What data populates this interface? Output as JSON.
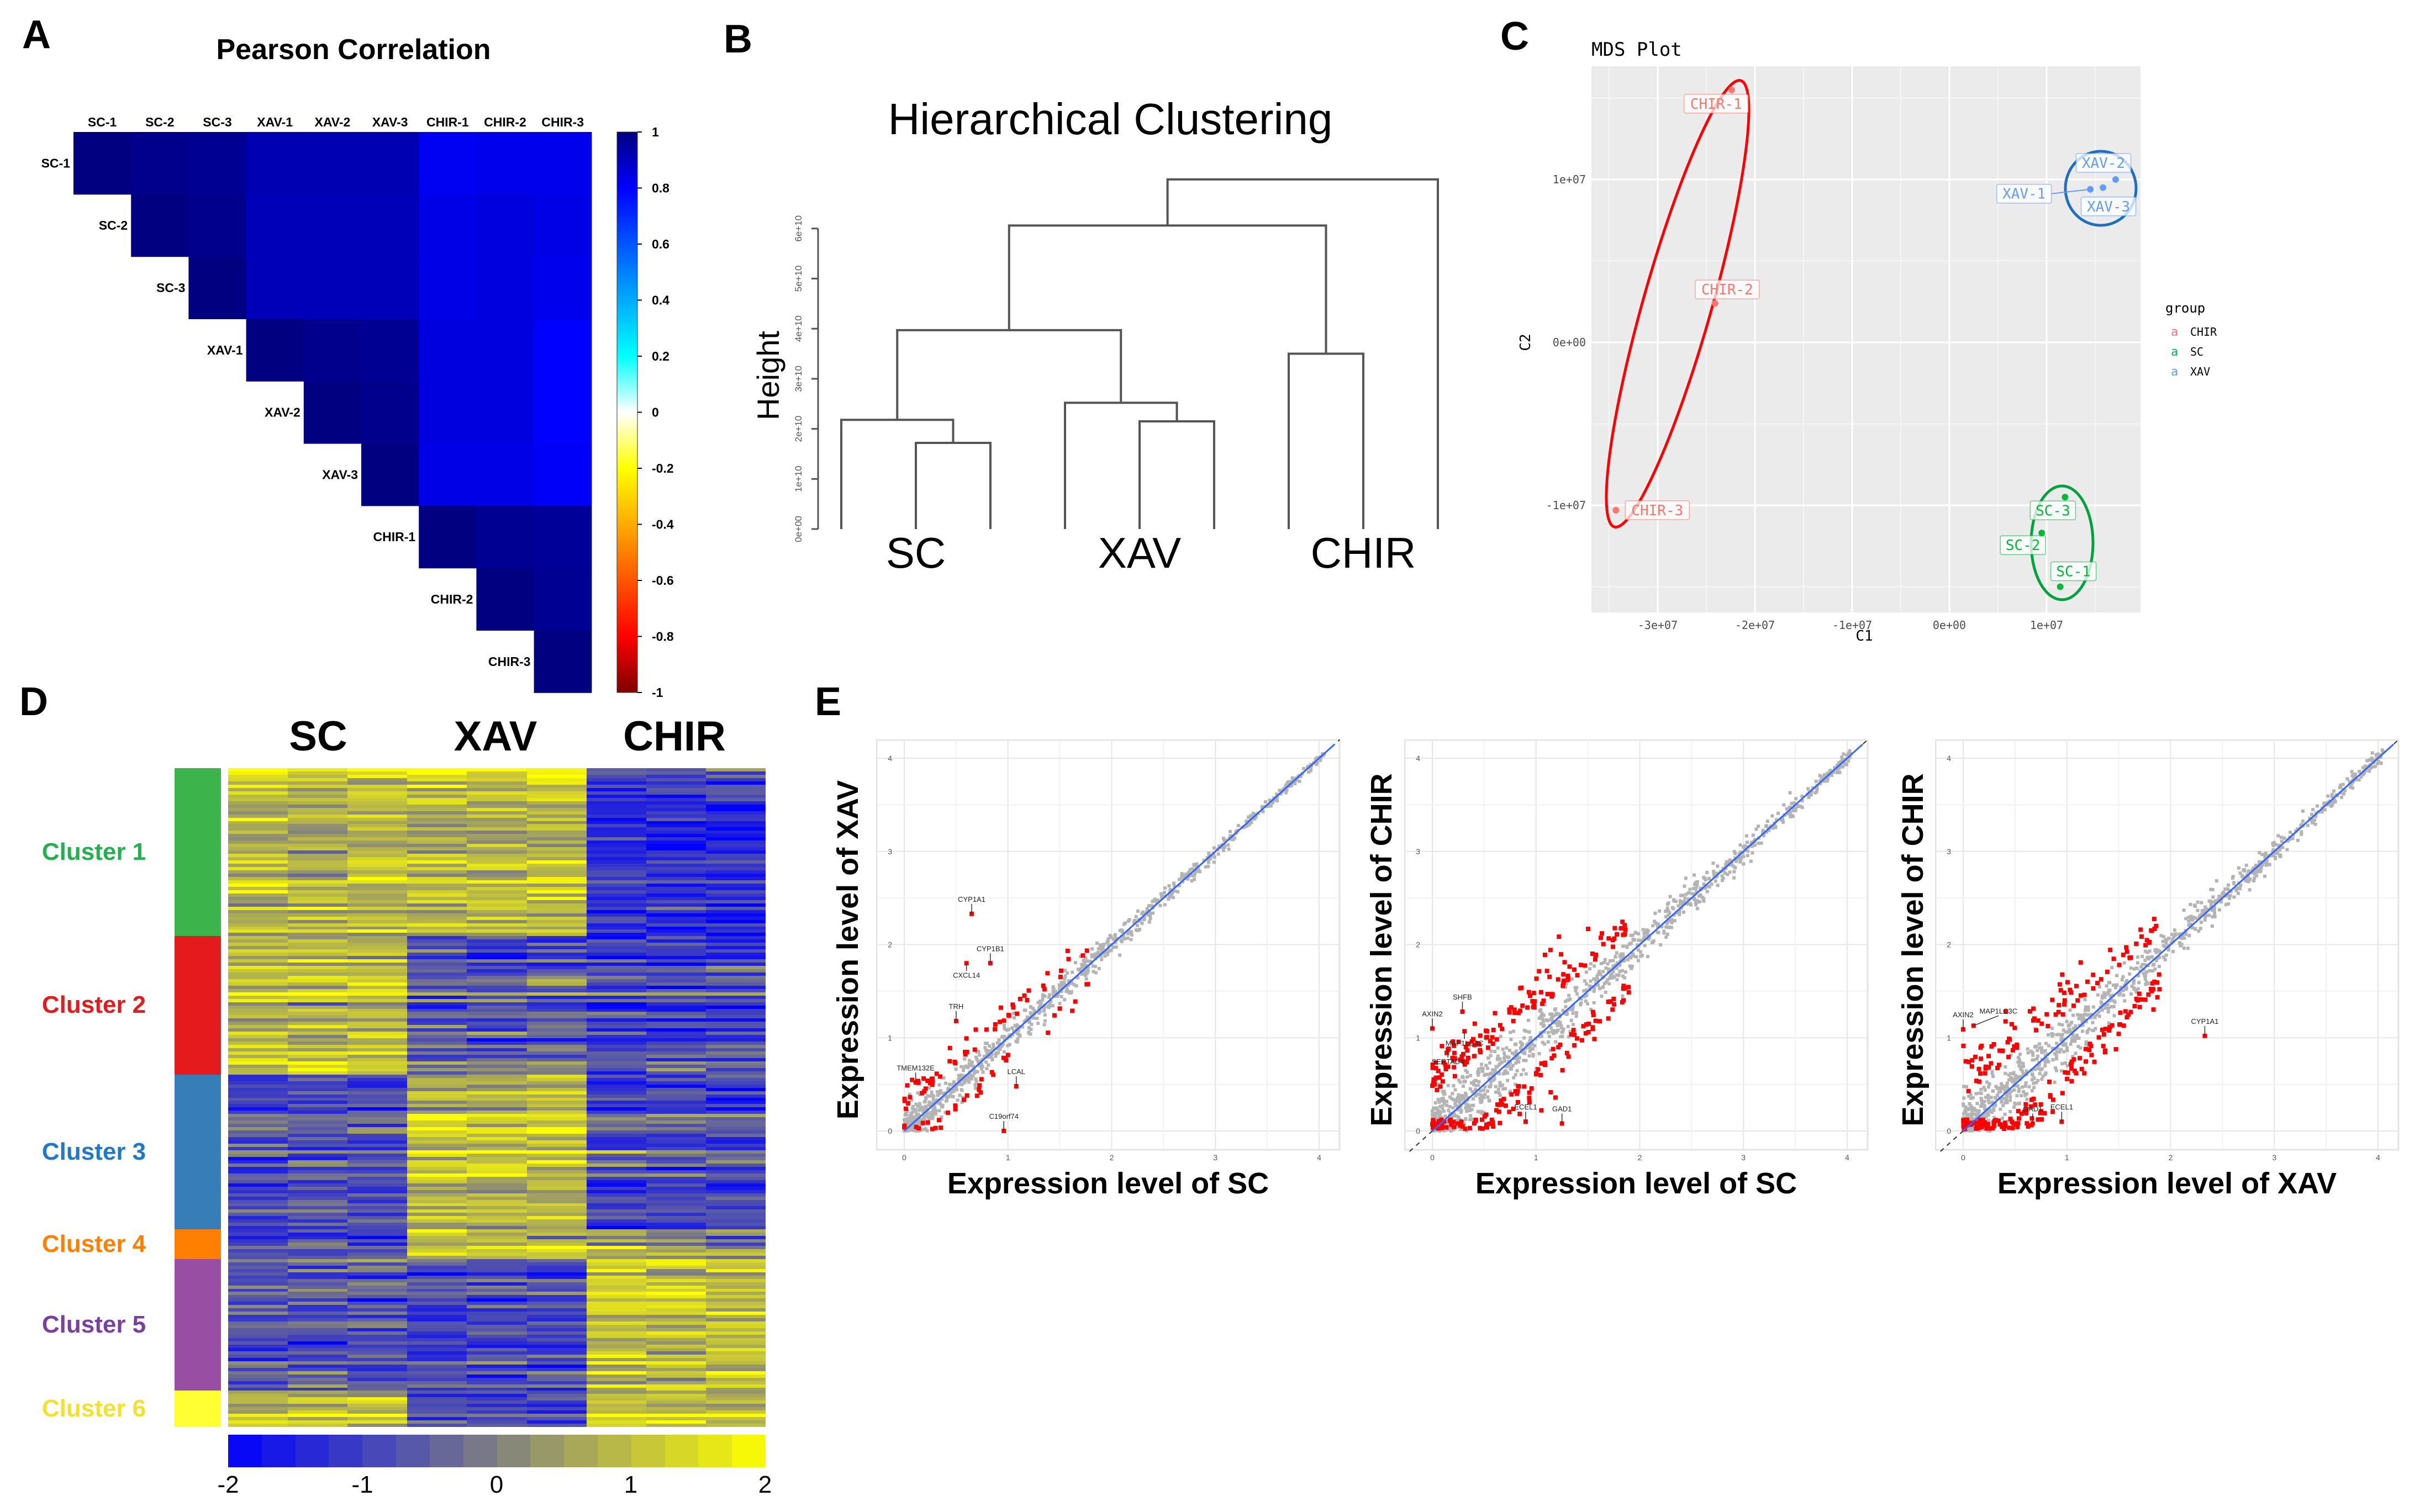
{
  "panel_letters": {
    "a": "A",
    "b": "B",
    "c": "C",
    "d": "D",
    "e": "E"
  },
  "chart_data": [
    {
      "id": "A",
      "type": "heatmap",
      "title": "Pearson Correlation",
      "samples": [
        "SC-1",
        "SC-2",
        "SC-3",
        "XAV-1",
        "XAV-2",
        "XAV-3",
        "CHIR-1",
        "CHIR-2",
        "CHIR-3"
      ],
      "matrix_upper": [
        [
          1,
          0.98,
          0.97,
          0.92,
          0.92,
          0.92,
          0.82,
          0.83,
          0.83
        ],
        [
          null,
          1,
          0.98,
          0.91,
          0.91,
          0.91,
          0.84,
          0.85,
          0.84
        ],
        [
          null,
          null,
          1,
          0.91,
          0.91,
          0.91,
          0.84,
          0.85,
          0.83
        ],
        [
          null,
          null,
          null,
          1,
          0.98,
          0.97,
          0.85,
          0.85,
          0.8
        ],
        [
          null,
          null,
          null,
          null,
          1,
          0.98,
          0.85,
          0.85,
          0.8
        ],
        [
          null,
          null,
          null,
          null,
          null,
          1,
          0.84,
          0.84,
          0.81
        ],
        [
          null,
          null,
          null,
          null,
          null,
          null,
          1,
          0.97,
          0.96
        ],
        [
          null,
          null,
          null,
          null,
          null,
          null,
          null,
          1,
          0.97
        ],
        [
          null,
          null,
          null,
          null,
          null,
          null,
          null,
          null,
          1
        ]
      ],
      "colorbar": {
        "range": [
          -1,
          1
        ],
        "ticks": [
          "1",
          "0.8",
          "0.6",
          "0.4",
          "0.2",
          "0",
          "-0.2",
          "-0.4",
          "-0.6",
          "-0.8",
          "-1"
        ],
        "stops": [
          [
            -1,
            "#7f0000"
          ],
          [
            -0.8,
            "#ff0000"
          ],
          [
            -0.5,
            "#ff8000"
          ],
          [
            -0.2,
            "#ffff00"
          ],
          [
            0,
            "#ffffff"
          ],
          [
            0.2,
            "#00ffff"
          ],
          [
            0.5,
            "#0080ff"
          ],
          [
            0.8,
            "#0000ff"
          ],
          [
            1,
            "#000080"
          ]
        ]
      }
    },
    {
      "id": "B",
      "type": "dendrogram",
      "title": "Hierarchical Clustering",
      "ylabel": "Height",
      "yticks": [
        "0e+00",
        "1e+10",
        "2e+10",
        "3e+10",
        "4e+10",
        "5e+10",
        "6e+10"
      ],
      "height_unit": 10000000000.0,
      "n_leaves": 9,
      "merges": [
        {
          "id": "m0",
          "a": 1,
          "b": 2,
          "h": 1.72
        },
        {
          "id": "m1",
          "a": 4,
          "b": 5,
          "h": 2.15
        },
        {
          "id": "m2",
          "a": 0,
          "b": "m0",
          "h": 2.18
        },
        {
          "id": "m3",
          "a": 3,
          "b": "m1",
          "h": 2.52
        },
        {
          "id": "m4",
          "a": 6,
          "b": 7,
          "h": 3.5
        },
        {
          "id": "m5",
          "a": "m2",
          "b": "m3",
          "h": 3.97
        },
        {
          "id": "m6",
          "a": "m5",
          "b": "m4",
          "h": 6.06
        },
        {
          "id": "m7",
          "a": "m6",
          "b": 8,
          "h": 6.98
        }
      ],
      "group_labels": [
        "SC",
        "XAV",
        "CHIR"
      ]
    },
    {
      "id": "C",
      "type": "scatter",
      "title": "MDS Plot",
      "xlabel": "C1",
      "ylabel": "C2",
      "xticks": [
        {
          "v": -30000000.0,
          "t": "-3e+07"
        },
        {
          "v": -20000000.0,
          "t": "-2e+07"
        },
        {
          "v": -10000000.0,
          "t": "-1e+07"
        },
        {
          "v": 0,
          "t": "0e+00"
        },
        {
          "v": 10000000.0,
          "t": "1e+07"
        }
      ],
      "yticks": [
        {
          "v": 10000000.0,
          "t": "1e+07"
        },
        {
          "v": 0,
          "t": "0e+00"
        },
        {
          "v": -10000000.0,
          "t": "-1e+07"
        }
      ],
      "legend": {
        "title": "group",
        "placement": "right",
        "items": [
          {
            "key": "a",
            "label": "CHIR",
            "color": "#f8766d"
          },
          {
            "key": "a",
            "label": "SC",
            "color": "#00ba38"
          },
          {
            "key": "a",
            "label": "XAV",
            "color": "#619cff"
          }
        ]
      },
      "ellipse_colors": {
        "CHIR": "#ff0000",
        "SC": "#00a33b",
        "XAV": "#1f6fbf"
      },
      "points": [
        {
          "label": "CHIR-1",
          "group": "CHIR",
          "x": -22400000.0,
          "y": 15500000.0
        },
        {
          "label": "CHIR-2",
          "group": "CHIR",
          "x": -24100000.0,
          "y": 2400000.0
        },
        {
          "label": "CHIR-3",
          "group": "CHIR",
          "x": -34300000.0,
          "y": -10300000.0
        },
        {
          "label": "XAV-1",
          "group": "XAV",
          "x": 14500000.0,
          "y": 9400000.0
        },
        {
          "label": "XAV-2",
          "group": "XAV",
          "x": 17100000.0,
          "y": 10000000.0
        },
        {
          "label": "XAV-3",
          "group": "XAV",
          "x": 15800000.0,
          "y": 9500000.0
        },
        {
          "label": "SC-1",
          "group": "SC",
          "x": 11400000.0,
          "y": -15000000.0
        },
        {
          "label": "SC-2",
          "group": "SC",
          "x": 9500000.0,
          "y": -11700000.0
        },
        {
          "label": "SC-3",
          "group": "SC",
          "x": 11900000.0,
          "y": -9500000.0
        }
      ]
    },
    {
      "id": "D",
      "type": "heatmap",
      "column_groups": [
        "SC",
        "XAV",
        "CHIR"
      ],
      "columns_per_group": 3,
      "colorbar": {
        "ticks": [
          "-2",
          "-1",
          "0",
          "1",
          "2"
        ],
        "range": [
          -2,
          2
        ],
        "stops": [
          [
            -2,
            "#0000ff"
          ],
          [
            0,
            "#808080"
          ],
          [
            2,
            "#ffff00"
          ]
        ]
      },
      "clusters": [
        {
          "label": "Cluster 1",
          "color": "#3cb44b",
          "label_color": "#22b14c",
          "rows": 51,
          "profile": [
            0.8,
            0.9,
            -1.3
          ]
        },
        {
          "label": "Cluster 2",
          "color": "#e41a1c",
          "label_color": "#e41a1c",
          "rows": 42,
          "profile": [
            1.0,
            -0.6,
            -0.9
          ]
        },
        {
          "label": "Cluster 3",
          "color": "#377eb8",
          "label_color": "#1f78c8",
          "rows": 47,
          "profile": [
            -0.7,
            1.0,
            -0.8
          ]
        },
        {
          "label": "Cluster 4",
          "color": "#ff7f00",
          "label_color": "#ff7f00",
          "rows": 9,
          "profile": [
            -0.8,
            1.1,
            0.3
          ]
        },
        {
          "label": "Cluster 5",
          "color": "#984ea3",
          "label_color": "#7b3fa0",
          "rows": 40,
          "profile": [
            -0.6,
            -0.8,
            1.1
          ]
        },
        {
          "label": "Cluster 6",
          "color": "#ffff33",
          "label_color": "#f5e12a",
          "rows": 11,
          "profile": [
            0.9,
            -0.8,
            1.0
          ]
        }
      ]
    },
    {
      "id": "E1",
      "type": "scatter",
      "xlabel": "Expression level of SC",
      "ylabel": "Expression level of XAV",
      "xlim": [
        -0.27,
        4.2
      ],
      "ylim": [
        -0.22,
        4.2
      ],
      "ticks": [
        "0",
        "1",
        "2",
        "3",
        "4"
      ],
      "spread": 0.09,
      "n_gray": 900,
      "n_red": 90,
      "labeled_genes": [
        {
          "gene": "CYP1A1",
          "x": 0.65,
          "y": 2.33
        },
        {
          "gene": "CYP1B1",
          "x": 0.83,
          "y": 1.8
        },
        {
          "gene": "CXCL14",
          "x": 0.6,
          "y": 1.8
        },
        {
          "gene": "TRH",
          "x": 0.5,
          "y": 1.18
        },
        {
          "gene": "TMEM132E",
          "x": 0.11,
          "y": 0.52
        },
        {
          "gene": "LCAL",
          "x": 1.08,
          "y": 0.48
        },
        {
          "gene": "C19orf74",
          "x": 0.96,
          "y": 0.0
        }
      ]
    },
    {
      "id": "E2",
      "type": "scatter",
      "xlabel": "Expression level of SC",
      "ylabel": "Expression level of CHIR",
      "xlim": [
        -0.27,
        4.2
      ],
      "ylim": [
        -0.22,
        4.2
      ],
      "ticks": [
        "0",
        "1",
        "2",
        "3",
        "4"
      ],
      "spread": 0.16,
      "n_gray": 1000,
      "n_red": 260,
      "labeled_genes": [
        {
          "gene": "AXIN2",
          "x": 0.0,
          "y": 1.1
        },
        {
          "gene": "SHFB",
          "x": 0.29,
          "y": 1.28
        },
        {
          "gene": "MAP1LC3C",
          "x": 0.31,
          "y": 1.07
        },
        {
          "gene": "SERTAD4",
          "x": 0.15,
          "y": 0.87
        },
        {
          "gene": "ECEL1",
          "x": 0.9,
          "y": 0.1
        },
        {
          "gene": "GAD1",
          "x": 1.25,
          "y": 0.08
        }
      ]
    },
    {
      "id": "E3",
      "type": "scatter",
      "xlabel": "Expression level of XAV",
      "ylabel": "Expression level of CHIR",
      "xlim": [
        -0.27,
        4.2
      ],
      "ylim": [
        -0.22,
        4.2
      ],
      "ticks": [
        "0",
        "1",
        "2",
        "3",
        "4"
      ],
      "spread": 0.15,
      "n_gray": 1000,
      "n_red": 240,
      "labeled_genes": [
        {
          "gene": "CYP1A1",
          "x": 2.33,
          "y": 1.02
        },
        {
          "gene": "AXIN2",
          "x": 0.0,
          "y": 1.09
        },
        {
          "gene": "MAP1LC3C",
          "x": 0.1,
          "y": 1.13
        },
        {
          "gene": "GAD1",
          "x": 0.67,
          "y": 0.08
        },
        {
          "gene": "ECEL1",
          "x": 0.95,
          "y": 0.1
        }
      ]
    }
  ],
  "colors": {
    "gray_point": "#b4b4b4",
    "red_point": "#ff0000",
    "fit_line": "#3366ff"
  }
}
